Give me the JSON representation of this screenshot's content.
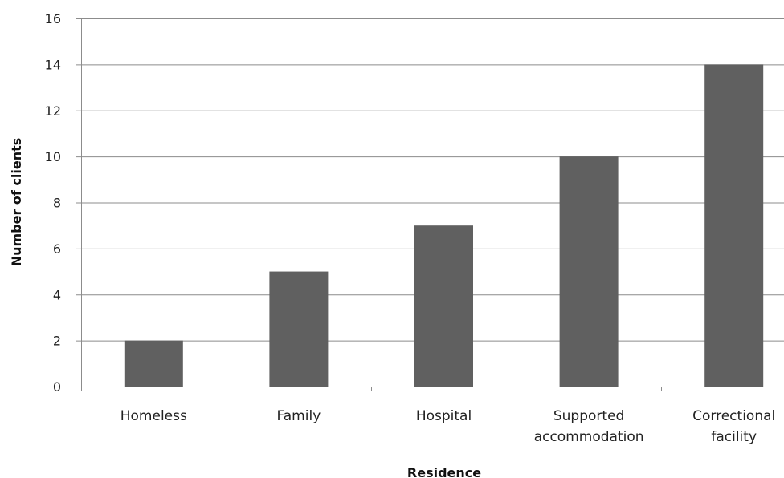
{
  "chart_data": {
    "type": "bar",
    "title": "",
    "xlabel": "Residence",
    "ylabel": "Number of clients",
    "categories": [
      [
        "Homeless"
      ],
      [
        "Family"
      ],
      [
        "Hospital"
      ],
      [
        "Supported",
        "accommodation"
      ],
      [
        "Correctional",
        "facility"
      ]
    ],
    "values": [
      2,
      5,
      7,
      10,
      14
    ],
    "ylim": [
      0,
      16
    ],
    "yticks": [
      "0",
      "2",
      "4",
      "6",
      "8",
      "10",
      "12",
      "14",
      "16"
    ],
    "grid": true,
    "legend": "none",
    "colors": {
      "bar": "#606060",
      "grid": "#8c8c8c",
      "axis": "#8c8c8c"
    }
  }
}
